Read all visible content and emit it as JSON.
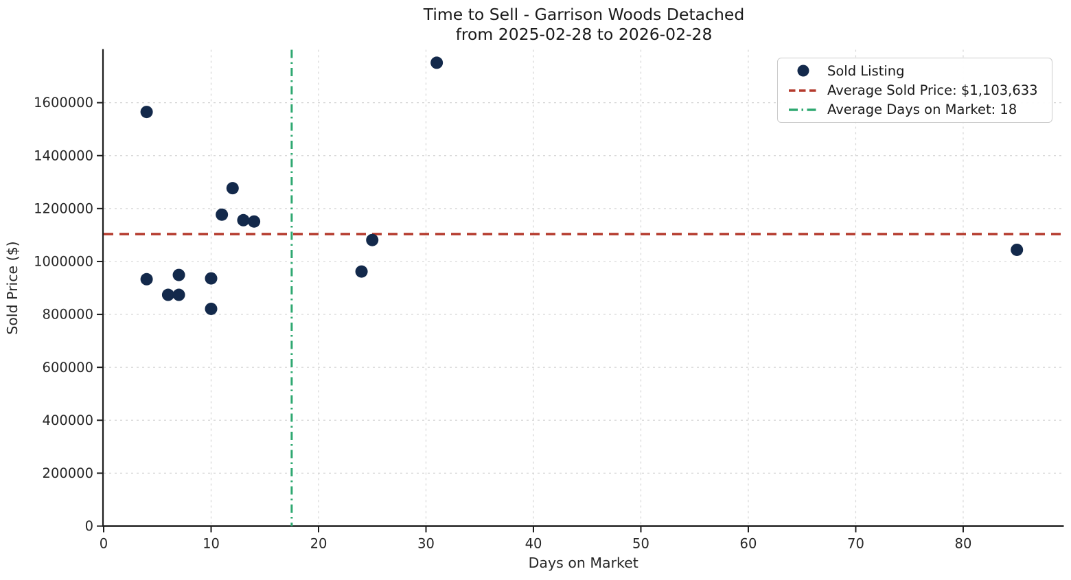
{
  "title": {
    "line1": "Time to Sell - Garrison Woods Detached",
    "line2": "from 2025-02-28 to 2026-02-28"
  },
  "chart_data": {
    "type": "scatter",
    "title": "Time to Sell - Garrison Woods Detached\nfrom 2025-02-28 to 2026-02-28",
    "xlabel": "Days on Market",
    "ylabel": "Sold Price ($)",
    "xlim": [
      0,
      89.3
    ],
    "ylim": [
      0,
      1800000
    ],
    "x_ticks": [
      0,
      10,
      20,
      30,
      40,
      50,
      60,
      70,
      80
    ],
    "y_ticks": [
      0,
      200000,
      400000,
      600000,
      800000,
      1000000,
      1200000,
      1400000,
      1600000
    ],
    "grid": true,
    "series": [
      {
        "name": "Sold Listing",
        "x": [
          4,
          4,
          6,
          7,
          7,
          10,
          10,
          11,
          12,
          13,
          14,
          24,
          25,
          31,
          85
        ],
        "y": [
          1565000,
          933000,
          874000,
          949000,
          874000,
          936000,
          821000,
          1177000,
          1277000,
          1156000,
          1151000,
          962000,
          1081000,
          1751000,
          1044000
        ]
      }
    ],
    "avg_price_line": {
      "value": 1103633,
      "label": "Average Sold Price: $1,103,633",
      "color": "#b43a2d",
      "style": "dashed"
    },
    "avg_days_line": {
      "value": 17.5,
      "label": "Average Days on Market: 18",
      "color": "#2fa871",
      "style": "dashdot"
    },
    "legend": {
      "position": "upper right",
      "entries": [
        {
          "label": "Sold Listing",
          "marker": "dot",
          "color": "#13294b"
        },
        {
          "label": "Average Sold Price: $1,103,633",
          "marker": "dashed-line",
          "color": "#b43a2d"
        },
        {
          "label": "Average Days on Market: 18",
          "marker": "dashdot-line",
          "color": "#2fa871"
        }
      ]
    },
    "colors": {
      "point": "#13294b",
      "grid": "#d4d4d4",
      "spine": "#1c1c1c",
      "text": "#262626"
    }
  }
}
